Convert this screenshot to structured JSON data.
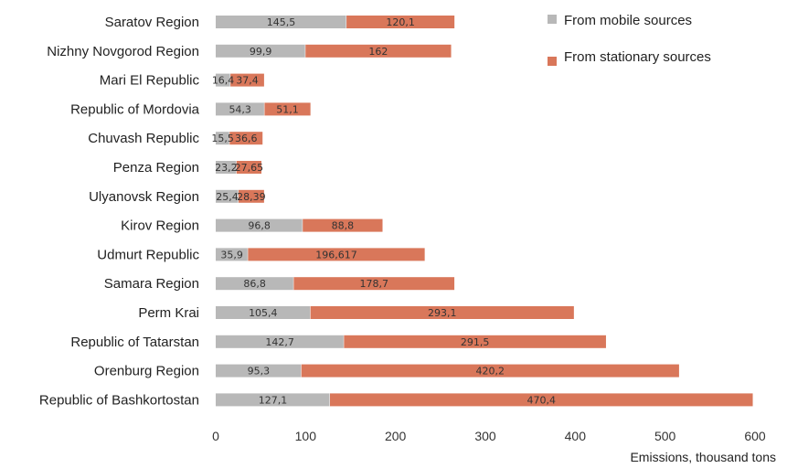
{
  "chart_data": {
    "type": "bar",
    "orientation": "horizontal",
    "stacked": true,
    "categories": [
      "Saratov Region",
      "Nizhny Novgorod Region",
      "Mari El Republic",
      "Republic of Mordovia",
      "Chuvash Republic",
      "Penza Region",
      "Ulyanovsk Region",
      "Kirov Region",
      "Udmurt Republic",
      "Samara Region",
      "Perm Krai",
      "Republic of Tatarstan",
      "Orenburg Region",
      "Republic of Bashkortostan"
    ],
    "series": [
      {
        "name": "From mobile sources",
        "color": "#b8b8b8",
        "values": [
          145.5,
          99.9,
          16.4,
          54.3,
          15.5,
          23.2,
          25.4,
          96.8,
          35.9,
          86.8,
          105.4,
          142.7,
          95.3,
          127.1
        ],
        "labels": [
          "145,5",
          "99,9",
          "16,4",
          "54,3",
          "15,5",
          "23,2",
          "25,4",
          "96,8",
          "35,9",
          "86,8",
          "105,4",
          "142,7",
          "95,3",
          "127,1"
        ]
      },
      {
        "name": "From stationary sources",
        "color": "#d9775a",
        "values": [
          120.1,
          162,
          37.4,
          51.1,
          36.6,
          27.65,
          28.39,
          88.8,
          196.617,
          178.7,
          293.1,
          291.5,
          420.2,
          470.4
        ],
        "labels": [
          "120,1",
          "162",
          "37,4",
          "51,1",
          "36,6",
          "27,65",
          "28,39",
          "88,8",
          "196,617",
          "178,7",
          "293,1",
          "291,5",
          "420,2",
          "470,4"
        ]
      }
    ],
    "xticks": [
      0,
      100,
      200,
      300,
      400,
      500,
      600
    ],
    "xlim": [
      0,
      600
    ],
    "xlabel": "Emissions, thousand tons",
    "ylabel": "",
    "title": "",
    "legend_position": "top-right",
    "grid": false
  }
}
